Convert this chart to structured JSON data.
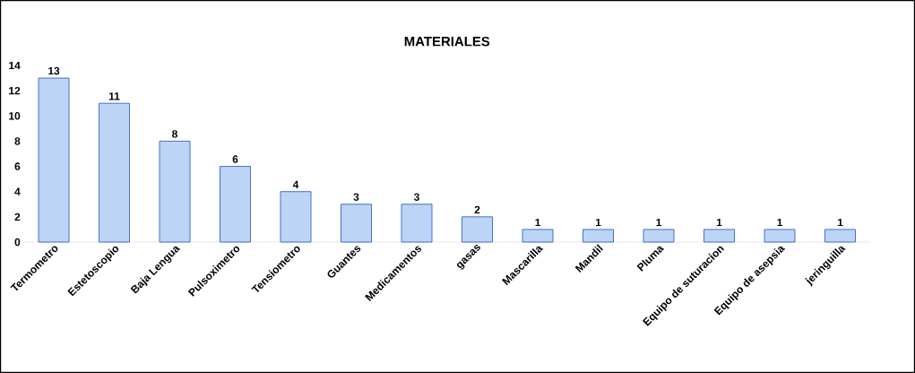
{
  "chart_data": {
    "type": "bar",
    "title": "MATERIALES",
    "categories": [
      "Termometro",
      "Estetoscopio",
      "Baja Lengua",
      "Pulsoximetro",
      "Tensiometro",
      "Guantes",
      "Medicamentos",
      "gasas",
      "Mascarilla",
      "Mandil",
      "Pluma",
      "Equipo de suturacion",
      "Equipo de asepsia",
      "jeringuilla"
    ],
    "values": [
      13,
      11,
      8,
      6,
      4,
      3,
      3,
      2,
      1,
      1,
      1,
      1,
      1,
      1
    ],
    "color": "#bcd4f6",
    "ylim": [
      0,
      14
    ],
    "yticks": [
      0,
      2,
      4,
      6,
      8,
      10,
      12,
      14
    ],
    "data_labels": true
  }
}
